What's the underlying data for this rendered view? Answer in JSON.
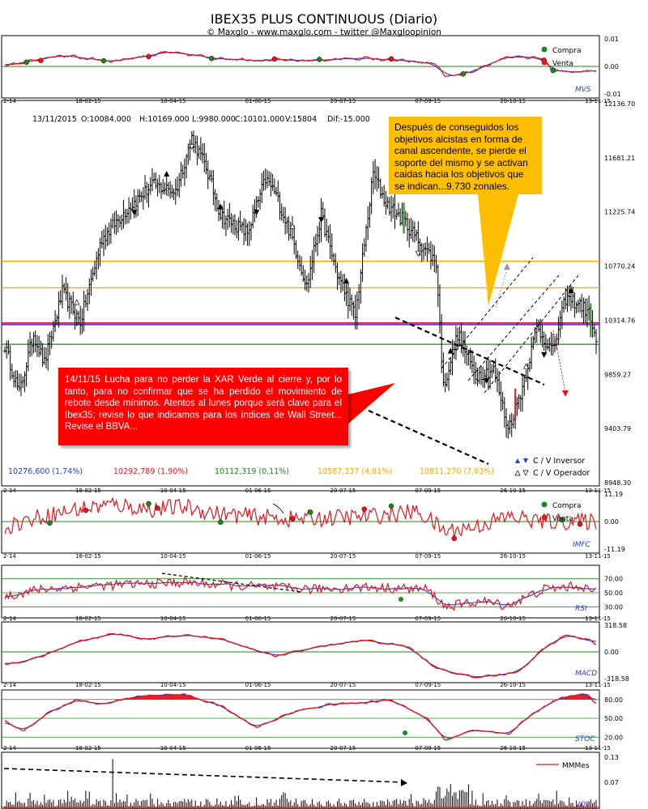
{
  "header": {
    "title": "IBEX35 PLUS CONTINUOUS (Diario)",
    "subtitle": "© Maxglo - www.maxglo.com - twitter @Maxgloopinion"
  },
  "colors": {
    "blue": "#1f3fd6",
    "red": "#e8141c",
    "green": "#1a8a1a",
    "orange": "#ffa500",
    "purple": "#c000c0",
    "yellow": "#ffbe00"
  },
  "x_axis": {
    "labels": [
      "2-14",
      "18-02-15",
      "10-04-15",
      "01-06-15",
      "20-07-15",
      "07-09-15",
      "26-10-15",
      "13-11-15"
    ]
  },
  "chart_data": [
    {
      "type": "line",
      "panel": "mvs",
      "name": "MVS",
      "ylim": [
        -0.01,
        0.01
      ],
      "y_ticks": [
        "0.01",
        "0.00",
        "-0.01"
      ],
      "legend": [
        "Compra",
        "Venta"
      ]
    },
    {
      "type": "ohlc",
      "panel": "price",
      "ylim": [
        8948.3,
        12136.7
      ],
      "y_ticks": [
        "12136.70",
        "11681.21",
        "11225.74",
        "10770.24",
        "10314.76",
        "9859.27",
        "9403.79",
        "8948.30"
      ],
      "info": {
        "date": "13/11/2015",
        "open": "O:10084.000",
        "high": "H:10169.000",
        "low": "L:9980.000",
        "close": "C:10101.000",
        "volume": "V:15804",
        "dif": "Dif:-15.000"
      },
      "levels": [
        {
          "text": "10276,600 (1,74%)",
          "value": 10276.6,
          "color": "#1f3fd6"
        },
        {
          "text": "10292,789 (1,90%)",
          "value": 10292.8,
          "color": "#e8141c"
        },
        {
          "text": "10112,319 (0,11%)",
          "value": 10112.3,
          "color": "#1a8a1a"
        },
        {
          "text": "10587,337 (4,81%)",
          "value": 10587.3,
          "color": "#ffa500"
        },
        {
          "text": "10811,270 (7,03%)",
          "value": 10811.3,
          "color": "#ffa500"
        }
      ],
      "legend": [
        "C / V Inversor",
        "C / V Operador"
      ],
      "callouts": {
        "yellow": "Después de conseguidos los objetivos alcistas en forma de canal ascendente, se pierde el soporte del mismo y se activan caidas hacia los objetivos que se indican...9.730 zonales.",
        "red": "14/11/15  Lucha para no perder la XAR Verde al cierre y, por lo tanto, para no confirmar que se ha perdido el movimiento de rebote desde mínimos. Atentos al lunes porque será clave para el Ibex35; revise lo que indicamos para los índices de Wall Street... Revise el BBVA..."
      }
    },
    {
      "type": "line",
      "panel": "imfc",
      "name": "IMFC",
      "ylim": [
        -11.19,
        11.19
      ],
      "y_ticks": [
        "11.19",
        "0.00",
        "-11.19"
      ],
      "legend": [
        "Compra",
        "Venta"
      ]
    },
    {
      "type": "line",
      "panel": "rsi",
      "name": "RSI",
      "ylim": [
        20,
        80
      ],
      "y_ticks": [
        "70.00",
        "50.00",
        "30.00"
      ]
    },
    {
      "type": "line",
      "panel": "macd",
      "name": "MACD",
      "ylim": [
        -318.58,
        318.58
      ],
      "y_ticks": [
        "318.58",
        "0.00",
        "-318.58"
      ]
    },
    {
      "type": "line",
      "panel": "stoc",
      "name": "STOC",
      "ylim": [
        10,
        90
      ],
      "y_ticks": [
        "80.00",
        "50.00",
        "20.00"
      ]
    },
    {
      "type": "bar",
      "panel": "vol",
      "name": "VOL",
      "ylim": [
        0,
        0.13
      ],
      "y_ticks": [
        "0.13",
        "0.07",
        "0.00"
      ],
      "legend": [
        "MMMes"
      ]
    }
  ]
}
